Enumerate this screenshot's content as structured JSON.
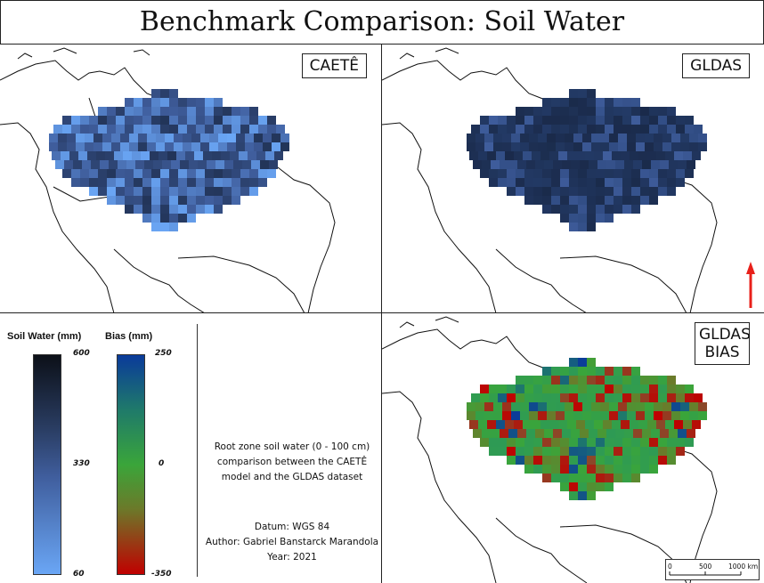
{
  "title": "Benchmark Comparison: Soil Water",
  "panels": {
    "caete": {
      "label": "CAETÊ"
    },
    "gldas": {
      "label": "GLDAS"
    },
    "bias": {
      "label_line1": "GLDAS",
      "label_line2": "BIAS"
    }
  },
  "legend": {
    "soil_water": {
      "title": "Soil Water (mm)",
      "max": "600",
      "mid": "330",
      "min": "60"
    },
    "bias": {
      "title": "Bias (mm)",
      "max": "250",
      "mid": "0",
      "min": "-350"
    }
  },
  "description": {
    "line1": "Root zone soil water (0 - 100 cm)",
    "line2": "comparison between the CAETÊ",
    "line3": "model and the GLDAS dataset",
    "datum": "Datum: WGS 84",
    "author": "Author: Gabriel Banstarck Marandola",
    "year": "Year: 2021"
  },
  "scalebar": {
    "t0": "0",
    "t1": "500",
    "t2": "1000 km"
  },
  "colors": {
    "soil_low": "#6aa6f5",
    "soil_mid": "#3f5d9c",
    "soil_high": "#0c1018",
    "bias_low": "#c00000",
    "bias_mid": "#3aa53a",
    "bias_high": "#0a3a9a",
    "north_arrow": "#e8201a"
  }
}
